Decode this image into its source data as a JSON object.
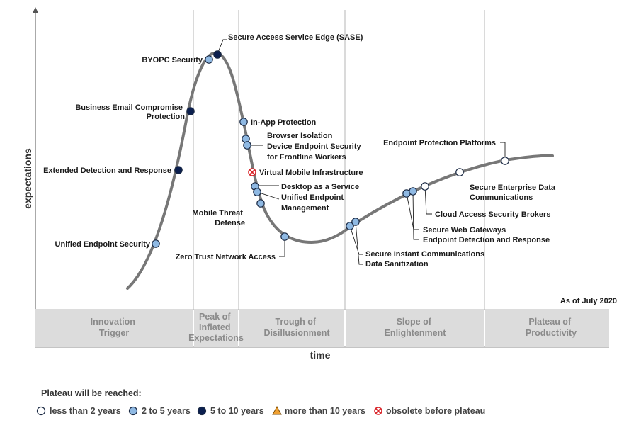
{
  "chart_data": {
    "type": "hype_cycle",
    "xlabel": "time",
    "ylabel": "expectations",
    "as_of": "As of July 2020",
    "phases": [
      {
        "lines": [
          "Innovation",
          "Trigger"
        ]
      },
      {
        "lines": [
          "Peak of",
          "Inflated",
          "Expectations"
        ]
      },
      {
        "lines": [
          "Trough of",
          "Disillusionment"
        ]
      },
      {
        "lines": [
          "Slope of",
          "Enlightenment"
        ]
      },
      {
        "lines": [
          "Plateau of",
          "Productivity"
        ]
      }
    ],
    "legend": {
      "title": "Plateau will be reached:",
      "items": [
        {
          "key": "lt2",
          "label": "less than 2 years",
          "color": "#ffffff",
          "shape": "circle"
        },
        {
          "key": "2to5",
          "label": "2 to 5 years",
          "color": "#8fb9e3",
          "shape": "circle"
        },
        {
          "key": "5to10",
          "label": "5 to 10 years",
          "color": "#0b1f4f",
          "shape": "circle"
        },
        {
          "key": "gt10",
          "label": "more than 10 years",
          "color": "#f0a030",
          "shape": "triangle"
        },
        {
          "key": "obsolete",
          "label": "obsolete before plateau",
          "color": "#d9262b",
          "shape": "x"
        }
      ]
    },
    "technologies": [
      {
        "lines": [
          "Unified Endpoint Security"
        ],
        "category": "2to5"
      },
      {
        "lines": [
          "Extended Detection and Response"
        ],
        "category": "5to10"
      },
      {
        "lines": [
          "Business Email Compromise",
          "Protection"
        ],
        "category": "5to10"
      },
      {
        "lines": [
          "BYOPC Security"
        ],
        "category": "2to5"
      },
      {
        "lines": [
          "Secure Access Service Edge (SASE)"
        ],
        "category": "5to10"
      },
      {
        "lines": [
          "In-App Protection"
        ],
        "category": "2to5"
      },
      {
        "lines": [
          "Browser Isolation"
        ],
        "category": "2to5"
      },
      {
        "lines": [
          "Device Endpoint Security",
          "for Frontline Workers"
        ],
        "category": "2to5"
      },
      {
        "lines": [
          "Virtual Mobile Infrastructure"
        ],
        "category": "obsolete"
      },
      {
        "lines": [
          "Desktop as a Service"
        ],
        "category": "2to5"
      },
      {
        "lines": [
          "Unified Endpoint",
          "Management"
        ],
        "category": "2to5"
      },
      {
        "lines": [
          "Mobile Threat",
          "Defense"
        ],
        "category": "2to5"
      },
      {
        "lines": [
          "Zero Trust Network Access"
        ],
        "category": "2to5"
      },
      {
        "lines": [
          "Secure Instant Communications"
        ],
        "category": "2to5"
      },
      {
        "lines": [
          "Data Sanitization"
        ],
        "category": "2to5"
      },
      {
        "lines": [
          "Secure Web Gateways"
        ],
        "category": "2to5"
      },
      {
        "lines": [
          "Endpoint Detection and Response"
        ],
        "category": "2to5"
      },
      {
        "lines": [
          "Cloud Access Security Brokers"
        ],
        "category": "lt2"
      },
      {
        "lines": [
          "Secure Enterprise Data",
          "Communications"
        ],
        "category": "lt2"
      },
      {
        "lines": [
          "Endpoint Protection Platforms"
        ],
        "category": "lt2"
      }
    ]
  }
}
